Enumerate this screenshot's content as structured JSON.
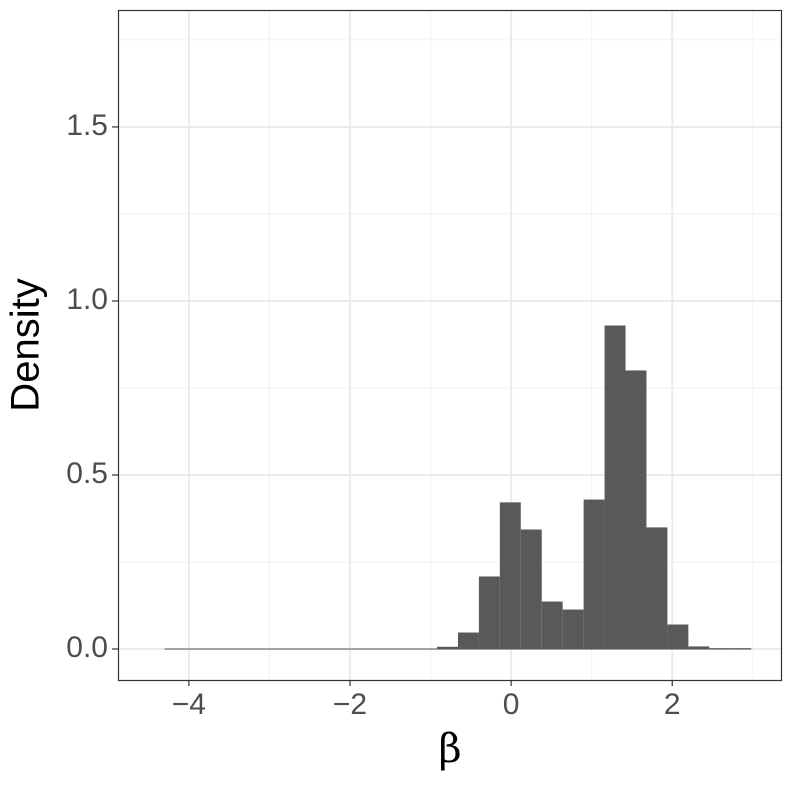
{
  "chart_data": {
    "type": "histogram",
    "x_label": "β",
    "y_label": "Density",
    "bins": [
      -4.3,
      -4.04,
      -3.78,
      -3.52,
      -3.26,
      -3.0,
      -2.74,
      -2.48,
      -2.22,
      -1.96,
      -1.7,
      -1.44,
      -1.18,
      -0.92,
      -0.66,
      -0.4,
      -0.14,
      0.12,
      0.38,
      0.64,
      0.9,
      1.16,
      1.42,
      1.68,
      1.94,
      2.2,
      2.46,
      2.72,
      2.98
    ],
    "values": [
      0,
      0,
      0,
      0,
      0,
      0,
      0,
      0,
      0,
      0,
      0,
      0,
      0,
      0.005,
      0.046,
      0.207,
      0.42,
      0.342,
      0.135,
      0.112,
      0.428,
      0.928,
      0.799,
      0.348,
      0.069,
      0.006,
      0.001,
      0.001
    ],
    "color": "#595959",
    "xlim": [
      -4.88,
      3.35
    ],
    "ylim": [
      -0.089,
      1.836
    ],
    "xticks": [
      {
        "value": -4,
        "label": "−4"
      },
      {
        "value": -2,
        "label": "−2"
      },
      0,
      2
    ],
    "yticks": [
      {
        "value": 0,
        "label": "0.0"
      },
      0.5,
      {
        "value": 1,
        "label": "1.0"
      },
      1.5
    ],
    "xminor": [
      -3,
      -1,
      1,
      3
    ],
    "yminor": [
      0.25,
      0.75,
      1.25,
      1.75
    ],
    "grid": true
  }
}
